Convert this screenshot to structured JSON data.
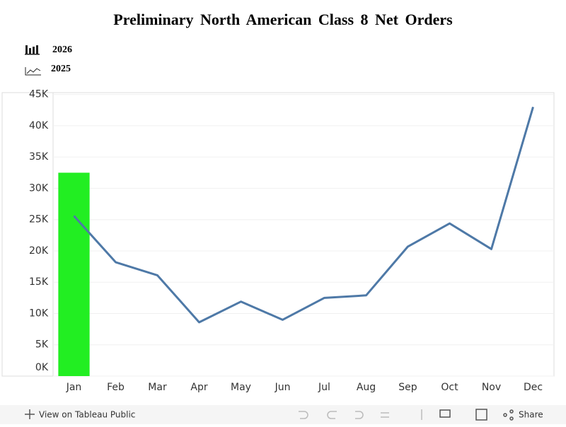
{
  "chart_data": {
    "type": "combo",
    "title": "Preliminary North American Class 8 Net Orders",
    "categories": [
      "Jan",
      "Feb",
      "Mar",
      "Apr",
      "May",
      "Jun",
      "Jul",
      "Aug",
      "Sep",
      "Oct",
      "Nov",
      "Dec"
    ],
    "series": [
      {
        "name": "2026",
        "type": "bar",
        "color": "#22ee22",
        "values": [
          32500,
          null,
          null,
          null,
          null,
          null,
          null,
          null,
          null,
          null,
          null,
          null
        ]
      },
      {
        "name": "2025",
        "type": "line",
        "color": "#4e79a7",
        "values": [
          25600,
          18200,
          16100,
          8600,
          11900,
          9000,
          12500,
          12900,
          20700,
          24400,
          20300,
          43000
        ]
      }
    ],
    "ylim": [
      0,
      45300
    ],
    "yticks": [
      {
        "value": 0,
        "label": "0K"
      },
      {
        "value": 5000,
        "label": "5K"
      },
      {
        "value": 10000,
        "label": "10K"
      },
      {
        "value": 15000,
        "label": "15K"
      },
      {
        "value": 20000,
        "label": "20K"
      },
      {
        "value": 25000,
        "label": "25K"
      },
      {
        "value": 30000,
        "label": "30K"
      },
      {
        "value": 35000,
        "label": "35K"
      },
      {
        "value": 40000,
        "label": "40K"
      },
      {
        "value": 45000,
        "label": "45K"
      }
    ],
    "grid": true
  },
  "footer": {
    "view_link": "View on Tableau Public",
    "share": "Share"
  }
}
